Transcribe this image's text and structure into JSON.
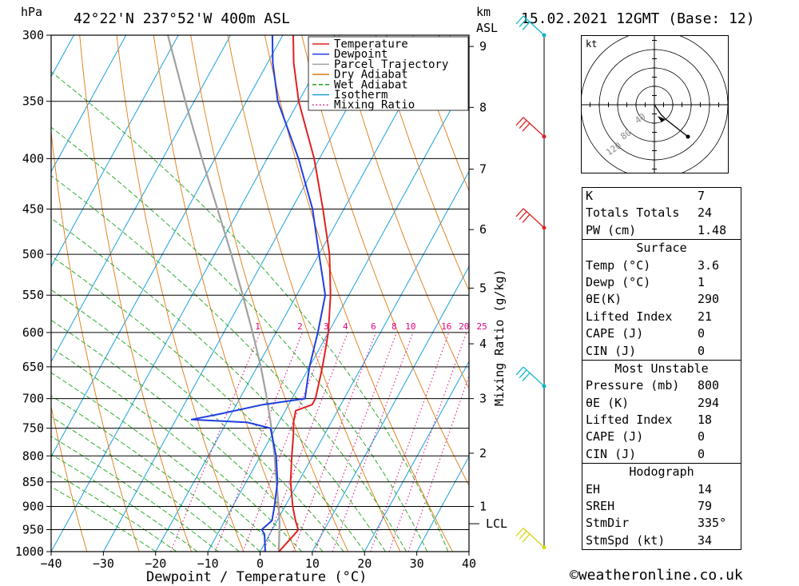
{
  "header": {
    "location": "42°22'N  237°52'W  400m  ASL",
    "datetime": "15.02.2021  12GMT  (Base: 12)",
    "hpa_unit": "hPa",
    "km_unit": "km",
    "asl_unit": "ASL"
  },
  "chart_data": {
    "type": "line",
    "title": "42°22'N  237°52'W  400m  ASL",
    "xlabel": "Dewpoint / Temperature (°C)",
    "ylabel": "hPa",
    "right_label": "Mixing Ratio (g/kg)",
    "xlim": [
      -40,
      40
    ],
    "ylim": [
      1000,
      300
    ],
    "x_ticks": [
      -40,
      -30,
      -20,
      -10,
      0,
      10,
      20,
      30,
      40
    ],
    "x_tick_labels": [
      "−40",
      "−30",
      "−20",
      "−10",
      "0",
      "10",
      "20",
      "30",
      "40"
    ],
    "pressure_levels": [
      300,
      350,
      400,
      450,
      500,
      550,
      600,
      650,
      700,
      750,
      800,
      850,
      900,
      950,
      1000
    ],
    "pressure_labels": [
      "300",
      "350",
      "400",
      "450",
      "500",
      "550",
      "600",
      "650",
      "700",
      "750",
      "800",
      "850",
      "900",
      "950",
      "1000"
    ],
    "height_ticks": [
      {
        "label": "1",
        "p": 900
      },
      {
        "label": "2",
        "p": 795
      },
      {
        "label": "3",
        "p": 700
      },
      {
        "label": "4",
        "p": 616
      },
      {
        "label": "5",
        "p": 541
      },
      {
        "label": "6",
        "p": 472
      },
      {
        "label": "7",
        "p": 410
      },
      {
        "label": "8",
        "p": 355
      },
      {
        "label": "9",
        "p": 308
      }
    ],
    "lcl": {
      "label": "LCL",
      "p": 937
    },
    "mixing_ratio_labels": [
      "1",
      "2",
      "3",
      "4",
      "6",
      "8",
      "10",
      "16",
      "20",
      "25"
    ],
    "mixing_ratio_values": [
      1,
      2,
      3,
      4,
      6,
      8,
      10,
      16,
      20,
      25
    ],
    "legend": [
      {
        "name": "Temperature",
        "color": "#e02020",
        "style": "solid"
      },
      {
        "name": "Dewpoint",
        "color": "#1f3fe0",
        "style": "solid"
      },
      {
        "name": "Parcel Trajectory",
        "color": "#a0a0a0",
        "style": "solid"
      },
      {
        "name": "Dry Adiabat",
        "color": "#e07a10",
        "style": "solid"
      },
      {
        "name": "Wet Adiabat",
        "color": "#1aa51a",
        "style": "dashed"
      },
      {
        "name": "Isotherm",
        "color": "#1aa0e0",
        "style": "solid"
      },
      {
        "name": "Mixing Ratio",
        "color": "#e0007a",
        "style": "dotted"
      }
    ],
    "series": [
      {
        "name": "Temperature",
        "color": "#e02020",
        "points": [
          [
            1000,
            3.6
          ],
          [
            960,
            4.8
          ],
          [
            950,
            5.0
          ],
          [
            930,
            3.5
          ],
          [
            900,
            1.5
          ],
          [
            850,
            -1.5
          ],
          [
            800,
            -4.0
          ],
          [
            760,
            -6.0
          ],
          [
            740,
            -7.2
          ],
          [
            720,
            -8.0
          ],
          [
            710,
            -5.5
          ],
          [
            700,
            -5.5
          ],
          [
            650,
            -7.5
          ],
          [
            600,
            -10.0
          ],
          [
            550,
            -13.5
          ],
          [
            500,
            -18.0
          ],
          [
            450,
            -24.0
          ],
          [
            400,
            -31.0
          ],
          [
            350,
            -40.0
          ],
          [
            320,
            -45.0
          ],
          [
            300,
            -48.0
          ]
        ]
      },
      {
        "name": "Dewpoint",
        "color": "#1f3fe0",
        "points": [
          [
            1000,
            1.0
          ],
          [
            960,
            -1.0
          ],
          [
            950,
            -2.0
          ],
          [
            930,
            -1.0
          ],
          [
            900,
            -2.0
          ],
          [
            850,
            -4.0
          ],
          [
            800,
            -7.0
          ],
          [
            750,
            -11.0
          ],
          [
            740,
            -16.0
          ],
          [
            735,
            -27.0
          ],
          [
            725,
            -22.0
          ],
          [
            710,
            -15.0
          ],
          [
            700,
            -7.5
          ],
          [
            650,
            -10.0
          ],
          [
            600,
            -12.0
          ],
          [
            550,
            -14.5
          ],
          [
            500,
            -20.0
          ],
          [
            450,
            -26.0
          ],
          [
            400,
            -34.0
          ],
          [
            350,
            -44.0
          ],
          [
            320,
            -49.0
          ],
          [
            300,
            -52.0
          ]
        ]
      },
      {
        "name": "Parcel Trajectory",
        "color": "#a0a0a0",
        "points": [
          [
            1000,
            3.6
          ],
          [
            937,
            0.8
          ],
          [
            900,
            -1.2
          ],
          [
            850,
            -4.2
          ],
          [
            800,
            -7.3
          ],
          [
            750,
            -10.8
          ],
          [
            700,
            -14.8
          ],
          [
            650,
            -19.3
          ],
          [
            600,
            -24.5
          ],
          [
            550,
            -30.3
          ],
          [
            500,
            -36.8
          ],
          [
            450,
            -44.2
          ],
          [
            400,
            -52.5
          ],
          [
            350,
            -61.7
          ],
          [
            300,
            -72.0
          ]
        ]
      }
    ],
    "wind_barbs": [
      {
        "p": 300,
        "color": "#10b5c8"
      },
      {
        "p": 380,
        "color": "#e02020"
      },
      {
        "p": 470,
        "color": "#e02020"
      },
      {
        "p": 680,
        "color": "#10b5c8"
      },
      {
        "p": 990,
        "color": "#d6d610"
      }
    ],
    "hodograph": {
      "unit": "kt",
      "ring_labels": [
        "40",
        "80",
        "120"
      ]
    }
  },
  "indices": {
    "general": [
      {
        "label": "K",
        "value": "7"
      },
      {
        "label": "Totals Totals",
        "value": "24"
      },
      {
        "label": "PW (cm)",
        "value": "1.48"
      }
    ],
    "surface_title": "Surface",
    "surface": [
      {
        "label": "Temp (°C)",
        "value": "3.6"
      },
      {
        "label": "Dewp (°C)",
        "value": "1"
      },
      {
        "label": "θE(K)",
        "value": "290"
      },
      {
        "label": "Lifted Index",
        "value": "21"
      },
      {
        "label": "CAPE (J)",
        "value": "0"
      },
      {
        "label": "CIN (J)",
        "value": "0"
      }
    ],
    "most_unstable_title": "Most Unstable",
    "most_unstable": [
      {
        "label": "Pressure (mb)",
        "value": "800"
      },
      {
        "label": "θE (K)",
        "value": "294"
      },
      {
        "label": "Lifted Index",
        "value": "18"
      },
      {
        "label": "CAPE (J)",
        "value": "0"
      },
      {
        "label": "CIN (J)",
        "value": "0"
      }
    ],
    "hodograph_title": "Hodograph",
    "hodograph": [
      {
        "label": "EH",
        "value": "14"
      },
      {
        "label": "SREH",
        "value": "79"
      },
      {
        "label": "StmDir",
        "value": "335°"
      },
      {
        "label": "StmSpd (kt)",
        "value": "34"
      }
    ]
  },
  "copyright": "©weatheronline.co.uk"
}
